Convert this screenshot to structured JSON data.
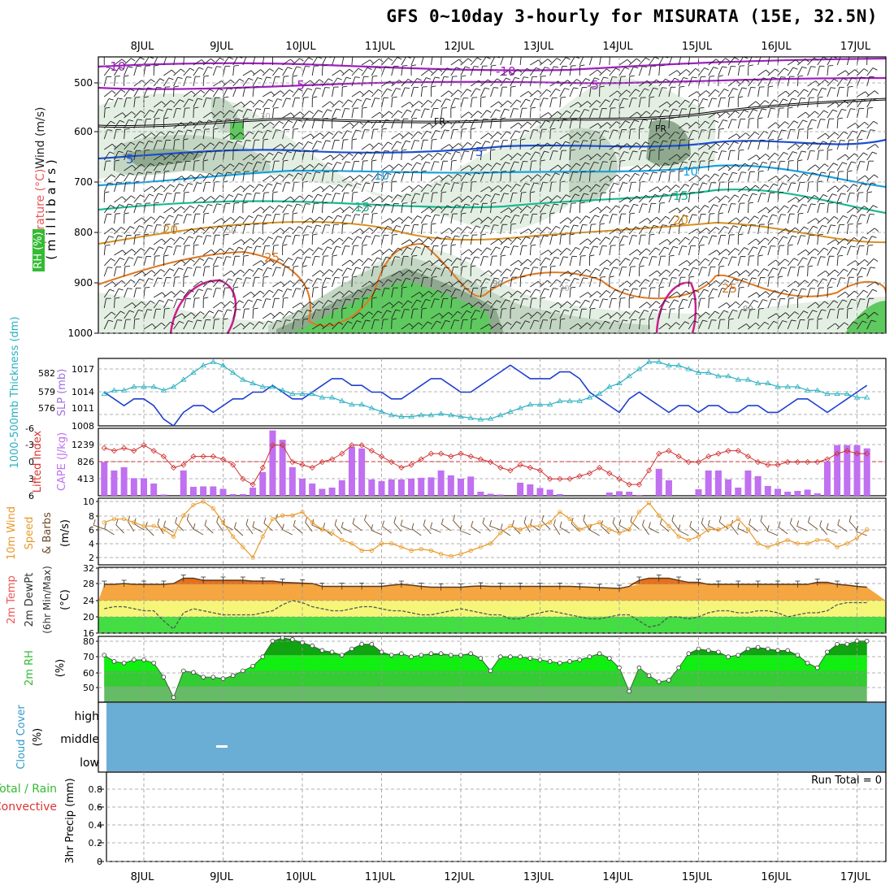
{
  "title": "GFS 0~10day 3-hourly for MISURATA (15E, 32.5N)",
  "x_axis": {
    "dates": [
      "8JUL",
      "9JUL",
      "10JUL",
      "11JUL",
      "12JUL",
      "13JUL",
      "14JUL",
      "15JUL",
      "16JUL",
      "17JUL"
    ],
    "start_hours_before_first_label": 12,
    "step_hours": 3
  },
  "colors": {
    "frame": "#000000",
    "grid": "#888888",
    "rh_light": "#e3efe3",
    "rh_mid": "#c3d6c3",
    "rh_dark": "#8fa98f",
    "rh_green": "#5ec95e",
    "slp": "#1f3fcf",
    "thickness": "#2ab0c0",
    "lifted_index": "#d03030",
    "cape": "#c070f0",
    "wind_speed": "#e89a2a",
    "barb": "#6b4a2a",
    "temp_hot": "#e8701a",
    "temp_warm": "#f5a640",
    "temp_yellow": "#f5f57a",
    "temp_green": "#44dd44",
    "rh2_dark": "#11a311",
    "rh2_bright": "#11ee11",
    "rh2_mid": "#33cc33",
    "rh2_low": "#66bb66",
    "cloud": "#6aaed6",
    "label_rh": "#33bb33",
    "label_temp": "#ee5555",
    "label_wind": "#222222",
    "label_cloud": "#3399cc",
    "label_precip_total": "#33bb33",
    "label_precip_conv": "#dd3333"
  },
  "panels": {
    "upper": {
      "ylabel_wind": "Wind (m/s)",
      "ylabel_temp": "Temperature (°C)",
      "ylabel_rh": "RH (%)",
      "ylabel_mb": "( m i l l i b a r s )",
      "pressure_ticks": [
        "500",
        "600",
        "700",
        "800",
        "900",
        "1000"
      ],
      "contour_labels": [
        "-10",
        "-10",
        "-5",
        "-5",
        "FR",
        "FR",
        "5",
        "5",
        "10",
        "10",
        "15",
        "15",
        "20",
        "20",
        "25",
        "25",
        "30",
        "30",
        "50",
        "90",
        "90"
      ]
    },
    "slp": {
      "ylabel_left": "1000-500mb Thickness (dm)",
      "ylabel_right": "SLP (mb)",
      "left_ticks": [
        "582",
        "579",
        "576"
      ],
      "right_ticks": [
        "1017",
        "1014",
        "1011",
        "1008"
      ]
    },
    "cape": {
      "ylabel_left": "Lifted Index",
      "ylabel_right": "CAPE (J/kg)",
      "left_ticks": [
        "-6",
        "-3",
        "0",
        "3",
        "6"
      ],
      "right_ticks": [
        "1239",
        "826",
        "413"
      ]
    },
    "wind10": {
      "ylabel1": "10m Wind",
      "ylabel2": "Speed",
      "ylabel3": "& Barbs",
      "ylabel4": "(m/s)",
      "ticks": [
        "10",
        "8",
        "6",
        "4",
        "2"
      ]
    },
    "temp2m": {
      "ylabel1": "2m Temp",
      "ylabel2": "2m DewPt",
      "ylabel3": "(6hr Min/Max)",
      "ylabel4": "(°C)",
      "ticks": [
        "32",
        "28",
        "24",
        "20",
        "16"
      ]
    },
    "rh2m": {
      "ylabel1": "2m RH",
      "ylabel2": "(%)",
      "ticks": [
        "80",
        "70",
        "60",
        "50"
      ]
    },
    "cloud": {
      "ylabel1": "Cloud Cover",
      "ylabel2": "(%)",
      "levels": [
        "high",
        "middle",
        "low"
      ]
    },
    "precip": {
      "ylabel_total": "Total / Rain",
      "ylabel_conv": "Convective",
      "ylabel_precip": "3hr Precip (mm)",
      "run_total": "Run Total = 0",
      "ticks": [
        "0.8",
        "0.6",
        "0.4",
        "0.2",
        "0"
      ]
    }
  },
  "chart_data": [
    {
      "type": "line",
      "title": "Sea level pressure (mb)",
      "series": [
        {
          "name": "SLP",
          "axis": "right",
          "ylim": [
            1008,
            1018
          ],
          "values": [
            1013,
            1012,
            1011,
            1012,
            1012,
            1011,
            1009,
            1008,
            1010,
            1011,
            1011,
            1010,
            1011,
            1012,
            1012,
            1013,
            1013,
            1014,
            1013,
            1012,
            1012,
            1013,
            1014,
            1015,
            1015,
            1014,
            1014,
            1013,
            1013,
            1012,
            1012,
            1013,
            1014,
            1015,
            1015,
            1014,
            1013,
            1013,
            1014,
            1015,
            1016,
            1017,
            1016,
            1015,
            1015,
            1015,
            1016,
            1016,
            1015,
            1013,
            1012,
            1011,
            1010,
            1012,
            1013,
            1012,
            1011,
            1010,
            1011,
            1011,
            1010,
            1011,
            1011,
            1010,
            1010,
            1011,
            1011,
            1010,
            1010,
            1011,
            1012,
            1012,
            1011,
            1010,
            1011,
            1012,
            1013,
            1014
          ]
        }
      ]
    },
    {
      "type": "line",
      "title": "1000-500mb thickness (dm)",
      "series": [
        {
          "name": "Thickness",
          "axis": "left",
          "ylim": [
            574.5,
            584
          ],
          "values": [
            579,
            579.5,
            579.5,
            580,
            580,
            580,
            579.5,
            580,
            581,
            582,
            583,
            583.5,
            583,
            582,
            581,
            580.5,
            580,
            580,
            579.5,
            579,
            579,
            579,
            578.5,
            578.5,
            578,
            577.5,
            577.5,
            577,
            576.5,
            576,
            575.8,
            575.8,
            576,
            576,
            576.2,
            576,
            575.8,
            575.6,
            575.4,
            575.5,
            576,
            576.5,
            577,
            577.5,
            577.5,
            577.5,
            578,
            578,
            578,
            578.5,
            579,
            580,
            580.5,
            581.5,
            582.5,
            583.5,
            583.5,
            583,
            583,
            582.5,
            582,
            582,
            581.5,
            581.5,
            581,
            581,
            580.5,
            580.5,
            580,
            580,
            580,
            579.5,
            579.5,
            579,
            579,
            579,
            578.5,
            578.5
          ]
        }
      ]
    },
    {
      "type": "bar",
      "title": "CAPE (J/kg)",
      "ylim": [
        0,
        1652
      ],
      "values": [
        826,
        620,
        700,
        430,
        430,
        300,
        30,
        0,
        620,
        220,
        230,
        230,
        170,
        40,
        40,
        200,
        580,
        1600,
        1370,
        700,
        420,
        300,
        170,
        200,
        380,
        1200,
        1160,
        400,
        360,
        400,
        400,
        420,
        440,
        450,
        620,
        500,
        420,
        470,
        100,
        50,
        30,
        0,
        320,
        280,
        190,
        150,
        40,
        0,
        0,
        0,
        0,
        80,
        110,
        100,
        20,
        0,
        660,
        380,
        0,
        0,
        160,
        620,
        620,
        400,
        200,
        620,
        480,
        240,
        170,
        100,
        120,
        150,
        60,
        840,
        1240,
        1240,
        1240,
        1160
      ]
    },
    {
      "type": "line",
      "title": "Lifted Index",
      "ylim": [
        6,
        -6
      ],
      "values": [
        -2.5,
        -2,
        -2.5,
        -2,
        -3,
        -2,
        -1,
        1,
        0.5,
        -1,
        -1,
        -1,
        -0.5,
        0.5,
        3,
        4,
        1,
        -3,
        -3,
        0,
        0.5,
        1,
        0,
        -0.5,
        -1.5,
        -3,
        -3,
        -2,
        -1,
        0,
        1,
        0.5,
        -0.5,
        -1.5,
        -1.5,
        -1,
        -1.5,
        -1,
        -0.5,
        0,
        1,
        1.5,
        0.5,
        1,
        1.5,
        3,
        3,
        3,
        2.5,
        2,
        1,
        2,
        3,
        4,
        4,
        1.5,
        -1.5,
        -2,
        -1,
        0,
        0,
        -1,
        -1.5,
        -2,
        -2,
        -1,
        0,
        0.5,
        0.5,
        0,
        0,
        0,
        0,
        -0.5,
        -1.5,
        -2,
        -1.5,
        -1.5
      ]
    },
    {
      "type": "line",
      "title": "10m Wind Speed (m/s)",
      "ylim": [
        2,
        10
      ],
      "values": [
        7,
        7.5,
        7.5,
        7,
        6.5,
        6.5,
        6,
        5,
        8,
        9.5,
        10,
        9,
        7,
        5,
        3.5,
        2,
        5,
        7.5,
        8,
        8,
        8.5,
        7,
        6,
        5.5,
        4.5,
        4,
        3,
        3,
        4,
        4,
        3.5,
        3,
        3.2,
        3,
        2.5,
        2.2,
        2.5,
        3,
        3.5,
        4,
        5.5,
        6.5,
        6,
        6.5,
        6.5,
        7,
        8.5,
        7.5,
        6,
        6.5,
        7,
        6,
        5.5,
        6,
        8.5,
        9.8,
        8,
        6.5,
        5,
        4.5,
        5,
        6,
        6,
        6.5,
        7.5,
        6,
        4,
        3.5,
        4,
        4.5,
        4,
        4,
        4.5,
        4.5,
        3.5,
        4,
        4.8,
        6
      ]
    },
    {
      "type": "area",
      "title": "2m Temperature and Dew Point (°C)",
      "ylim": [
        16,
        32
      ],
      "series": [
        {
          "name": "2m Temp",
          "values": [
            28,
            28,
            28.2,
            28,
            28,
            28,
            28,
            28.2,
            29.5,
            29.5,
            29,
            29,
            29,
            29,
            29,
            28.8,
            28.8,
            28.8,
            28.5,
            28.4,
            28.3,
            28.2,
            27.5,
            27.5,
            27.5,
            27.5,
            27.5,
            27.5,
            27.5,
            27.8,
            28,
            27.8,
            27.5,
            27.3,
            27.3,
            27.3,
            27.3,
            27.5,
            27.6,
            27.5,
            27.5,
            27.5,
            27.5,
            27.5,
            27.5,
            27.5,
            27.5,
            27.5,
            27.4,
            27.3,
            27.2,
            27.1,
            27,
            27.5,
            29,
            29.5,
            29.5,
            29.5,
            29,
            28.5,
            28.5,
            28,
            28,
            28,
            28,
            28,
            28,
            28,
            28,
            28,
            28,
            28,
            28.5,
            28.5,
            28,
            27.8,
            27.5,
            27.3
          ]
        },
        {
          "name": "2m DewPt",
          "values": [
            22,
            22.5,
            22.5,
            22,
            21.5,
            21.5,
            19,
            17,
            21,
            22,
            21.5,
            21,
            20.5,
            20.5,
            20.5,
            20.5,
            21,
            21.5,
            23,
            24,
            23.5,
            22.5,
            22,
            21.5,
            21.5,
            22,
            22.5,
            22.5,
            22,
            21.5,
            21.5,
            21,
            20.5,
            20.5,
            21,
            21.5,
            22,
            21.5,
            21,
            20.5,
            20.5,
            19.5,
            19.5,
            20.5,
            21,
            21.5,
            21,
            20.5,
            20,
            19.5,
            19.5,
            20,
            20.5,
            20.5,
            19,
            17.5,
            18,
            20,
            20,
            19.5,
            20,
            21,
            21.5,
            21.5,
            21,
            21,
            21.5,
            21.5,
            21,
            20,
            20.5,
            21,
            21,
            21.5,
            23,
            23.5,
            23.5,
            23.5
          ]
        }
      ]
    },
    {
      "type": "area",
      "title": "2m Relative Humidity (%)",
      "ylim": [
        40,
        82
      ],
      "values": [
        70,
        66,
        65,
        67,
        67,
        65,
        56,
        43,
        60,
        59,
        56,
        56,
        55,
        57,
        60,
        63,
        69,
        79,
        81,
        80,
        78,
        76,
        73,
        72,
        70,
        74,
        77,
        77,
        72,
        70,
        71,
        69,
        70,
        71,
        71,
        70,
        70,
        71,
        68,
        60,
        69,
        69,
        69,
        68,
        67,
        66,
        65,
        66,
        67,
        69,
        71,
        68,
        62,
        47,
        62,
        57,
        53,
        54,
        62,
        71,
        74,
        73,
        72,
        69,
        70,
        74,
        75,
        74,
        73,
        73,
        70,
        65,
        62,
        72,
        77,
        77,
        79,
        79
      ]
    },
    {
      "type": "bar",
      "title": "3hr Precip (mm)",
      "ylim": [
        0,
        0.9
      ],
      "values": [
        0,
        0,
        0,
        0,
        0,
        0,
        0,
        0,
        0,
        0,
        0,
        0,
        0,
        0,
        0,
        0,
        0,
        0,
        0,
        0,
        0,
        0,
        0,
        0,
        0,
        0,
        0,
        0,
        0,
        0,
        0,
        0,
        0,
        0,
        0,
        0,
        0,
        0,
        0,
        0,
        0,
        0,
        0,
        0,
        0,
        0,
        0,
        0,
        0,
        0,
        0,
        0,
        0,
        0,
        0,
        0,
        0,
        0,
        0,
        0,
        0,
        0,
        0,
        0,
        0,
        0,
        0,
        0,
        0,
        0,
        0,
        0,
        0,
        0,
        0,
        0,
        0,
        0
      ]
    }
  ]
}
